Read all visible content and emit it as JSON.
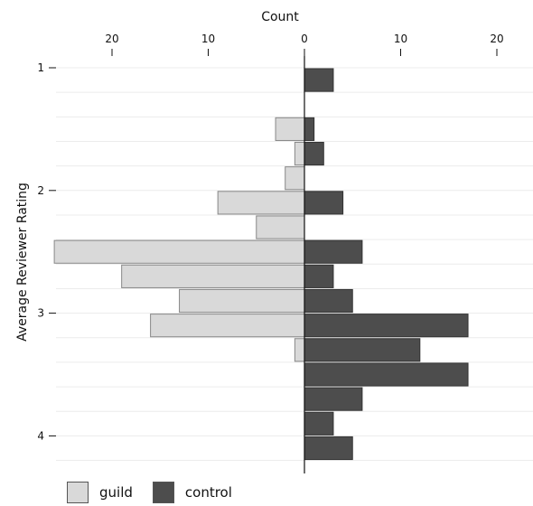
{
  "chart_data": {
    "type": "bar",
    "orientation": "horizontal-diverging",
    "xlabel": "Count",
    "ylabel": "Average Reviewer Rating",
    "x_ticks": [
      20,
      10,
      0,
      10,
      20
    ],
    "y_ticks": [
      1,
      2,
      3,
      4
    ],
    "xlim": [
      -25.8,
      23.4
    ],
    "ylim": [
      0.8,
      4.35
    ],
    "grid": true,
    "legend_position": "bottom-left",
    "bin_width": 0.2,
    "series": [
      {
        "name": "guild",
        "color": "#d9d9d9",
        "direction": "left",
        "bars": [
          {
            "y": 1.5,
            "value": 3
          },
          {
            "y": 1.7,
            "value": 1
          },
          {
            "y": 1.9,
            "value": 2
          },
          {
            "y": 2.1,
            "value": 9
          },
          {
            "y": 2.3,
            "value": 5
          },
          {
            "y": 2.5,
            "value": 26
          },
          {
            "y": 2.7,
            "value": 19
          },
          {
            "y": 2.9,
            "value": 13
          },
          {
            "y": 3.1,
            "value": 16
          },
          {
            "y": 3.3,
            "value": 1
          }
        ]
      },
      {
        "name": "control",
        "color": "#4d4d4d",
        "direction": "right",
        "bars": [
          {
            "y": 1.1,
            "value": 3
          },
          {
            "y": 1.5,
            "value": 1
          },
          {
            "y": 1.7,
            "value": 2
          },
          {
            "y": 2.1,
            "value": 4
          },
          {
            "y": 2.5,
            "value": 6
          },
          {
            "y": 2.7,
            "value": 3
          },
          {
            "y": 2.9,
            "value": 5
          },
          {
            "y": 3.1,
            "value": 17
          },
          {
            "y": 3.3,
            "value": 12
          },
          {
            "y": 3.5,
            "value": 17
          },
          {
            "y": 3.7,
            "value": 6
          },
          {
            "y": 3.9,
            "value": 3
          },
          {
            "y": 4.1,
            "value": 5
          }
        ]
      }
    ]
  }
}
